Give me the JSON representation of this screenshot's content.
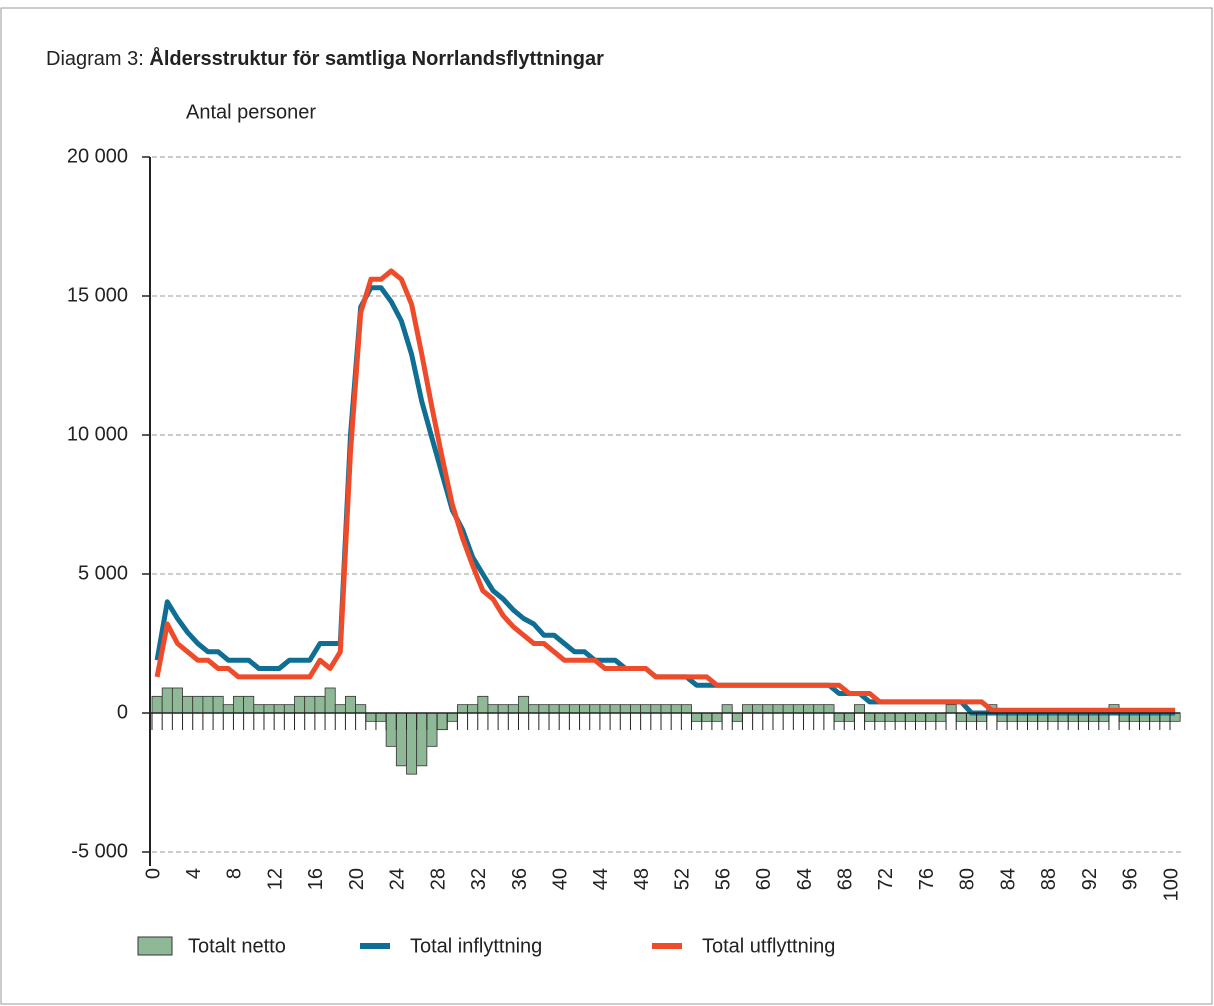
{
  "chart_data": {
    "type": "bar",
    "title": {
      "prefix": "Diagram 3:",
      "main": "Åldersstruktur för samtliga Norrlandsflyttningar"
    },
    "y_label": "Antal personer",
    "x": [
      0,
      1,
      2,
      3,
      4,
      5,
      6,
      7,
      8,
      9,
      10,
      11,
      12,
      13,
      14,
      15,
      16,
      17,
      18,
      19,
      20,
      21,
      22,
      23,
      24,
      25,
      26,
      27,
      28,
      29,
      30,
      31,
      32,
      33,
      34,
      35,
      36,
      37,
      38,
      39,
      40,
      41,
      42,
      43,
      44,
      45,
      46,
      47,
      48,
      49,
      50,
      51,
      52,
      53,
      54,
      55,
      56,
      57,
      58,
      59,
      60,
      61,
      62,
      63,
      64,
      65,
      66,
      67,
      68,
      69,
      70,
      71,
      72,
      73,
      74,
      75,
      76,
      77,
      78,
      79,
      80,
      81,
      82,
      83,
      84,
      85,
      86,
      87,
      88,
      89,
      90,
      91,
      92,
      93,
      94,
      95,
      96,
      97,
      98,
      99,
      100
    ],
    "xticks": [
      0,
      4,
      8,
      12,
      16,
      20,
      24,
      28,
      32,
      36,
      40,
      44,
      48,
      52,
      56,
      60,
      64,
      68,
      72,
      76,
      80,
      84,
      88,
      92,
      96,
      100
    ],
    "ylim": [
      -5000,
      20000
    ],
    "yticks": [
      {
        "value": -5000,
        "label": "-5 000"
      },
      0,
      {
        "value": 5000,
        "label": "5 000"
      },
      {
        "value": 10000,
        "label": "10 000"
      },
      {
        "value": 15000,
        "label": "15 000"
      },
      {
        "value": 20000,
        "label": "20 000"
      }
    ],
    "grid": true,
    "series": [
      {
        "name": "Totalt netto",
        "type": "bar",
        "color": "#8fb996",
        "values": [
          600,
          900,
          900,
          600,
          600,
          600,
          600,
          300,
          600,
          600,
          300,
          300,
          300,
          300,
          600,
          600,
          600,
          900,
          300,
          600,
          300,
          -300,
          -300,
          -1200,
          -1900,
          -2200,
          -1900,
          -1200,
          -600,
          -300,
          300,
          300,
          600,
          300,
          300,
          300,
          600,
          300,
          300,
          300,
          300,
          300,
          300,
          300,
          300,
          300,
          300,
          300,
          300,
          300,
          300,
          300,
          300,
          -300,
          -300,
          -300,
          300,
          -300,
          300,
          300,
          300,
          300,
          300,
          300,
          300,
          300,
          300,
          -300,
          -300,
          300,
          -300,
          -300,
          -300,
          -300,
          -300,
          -300,
          -300,
          -300,
          300,
          -300,
          -300,
          -300,
          300,
          -300,
          -300,
          -300,
          -300,
          -300,
          -300,
          -300,
          -300,
          -300,
          -300,
          -300,
          300,
          -300,
          -300,
          -300,
          -300,
          -300,
          -300
        ]
      },
      {
        "name": "Total inflyttning",
        "type": "line",
        "color": "#0f6e93",
        "values": [
          1900,
          4000,
          3400,
          2900,
          2500,
          2200,
          2200,
          1900,
          1900,
          1900,
          1600,
          1600,
          1600,
          1900,
          1900,
          1900,
          2500,
          2500,
          2500,
          10000,
          14600,
          15300,
          15300,
          14800,
          14100,
          12900,
          11200,
          9900,
          8600,
          7300,
          6600,
          5600,
          5000,
          4400,
          4100,
          3700,
          3400,
          3200,
          2800,
          2800,
          2500,
          2200,
          2200,
          1900,
          1900,
          1900,
          1600,
          1600,
          1600,
          1300,
          1300,
          1300,
          1300,
          1000,
          1000,
          1000,
          1000,
          1000,
          1000,
          1000,
          1000,
          1000,
          1000,
          1000,
          1000,
          1000,
          1000,
          700,
          700,
          700,
          400,
          400,
          400,
          400,
          400,
          400,
          400,
          400,
          400,
          400,
          0,
          0,
          0,
          0,
          0,
          0,
          0,
          0,
          0,
          0,
          0,
          0,
          0,
          0,
          0,
          0,
          0,
          0,
          0,
          0,
          0
        ]
      },
      {
        "name": "Total utflyttning",
        "type": "line",
        "color": "#ee4b2b",
        "values": [
          1300,
          3200,
          2500,
          2200,
          1900,
          1900,
          1600,
          1600,
          1300,
          1300,
          1300,
          1300,
          1300,
          1300,
          1300,
          1300,
          1900,
          1600,
          2200,
          9400,
          14400,
          15600,
          15600,
          15900,
          15600,
          14700,
          12900,
          11000,
          9200,
          7500,
          6300,
          5300,
          4400,
          4100,
          3500,
          3100,
          2800,
          2500,
          2500,
          2200,
          1900,
          1900,
          1900,
          1900,
          1600,
          1600,
          1600,
          1600,
          1600,
          1300,
          1300,
          1300,
          1300,
          1300,
          1300,
          1000,
          1000,
          1000,
          1000,
          1000,
          1000,
          1000,
          1000,
          1000,
          1000,
          1000,
          1000,
          1000,
          700,
          700,
          700,
          400,
          400,
          400,
          400,
          400,
          400,
          400,
          400,
          400,
          400,
          400,
          100,
          100,
          100,
          100,
          100,
          100,
          100,
          100,
          100,
          100,
          100,
          100,
          100,
          100,
          100,
          100,
          100,
          100,
          100
        ]
      }
    ]
  }
}
